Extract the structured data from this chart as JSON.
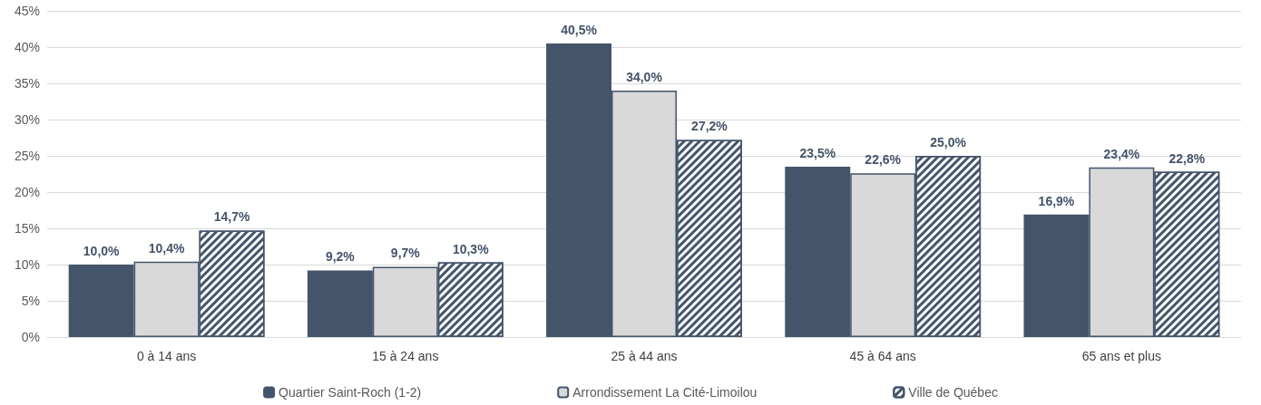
{
  "chart_data": {
    "type": "bar",
    "categories": [
      "0 à 14 ans",
      "15 à 24 ans",
      "25 à 44 ans",
      "45 à 64 ans",
      "65 ans et plus"
    ],
    "series": [
      {
        "name": "Quartier Saint-Roch (1-2)",
        "color": "#44546a",
        "values": [
          10.0,
          9.2,
          40.5,
          23.5,
          16.9
        ],
        "value_labels": [
          "10,0%",
          "9,2%",
          "40,5%",
          "23,5%",
          "16,9%"
        ]
      },
      {
        "name": "Arrondissement La Cité-Limoilou",
        "color": "#d9d9d9",
        "values": [
          10.4,
          9.7,
          34.0,
          22.6,
          23.4
        ],
        "value_labels": [
          "10,4%",
          "9,7%",
          "34,0%",
          "22,6%",
          "23,4%"
        ]
      },
      {
        "name": "Ville de Québec",
        "color": "#44546a",
        "values": [
          14.7,
          10.3,
          27.2,
          25.0,
          22.8
        ],
        "value_labels": [
          "14,7%",
          "10,3%",
          "27,2%",
          "25,0%",
          "22,8%"
        ]
      }
    ],
    "ylim": [
      0,
      45
    ],
    "yticks": [
      {
        "value": 0,
        "label": "0%"
      },
      {
        "value": 5,
        "label": "5%"
      },
      {
        "value": 10,
        "label": "10%"
      },
      {
        "value": 15,
        "label": "15%"
      },
      {
        "value": 20,
        "label": "20%"
      },
      {
        "value": 25,
        "label": "25%"
      },
      {
        "value": 30,
        "label": "30%"
      },
      {
        "value": 35,
        "label": "35%"
      },
      {
        "value": 40,
        "label": "40%"
      },
      {
        "value": 45,
        "label": "45%"
      }
    ],
    "grid": "y",
    "legend": "bottom"
  }
}
